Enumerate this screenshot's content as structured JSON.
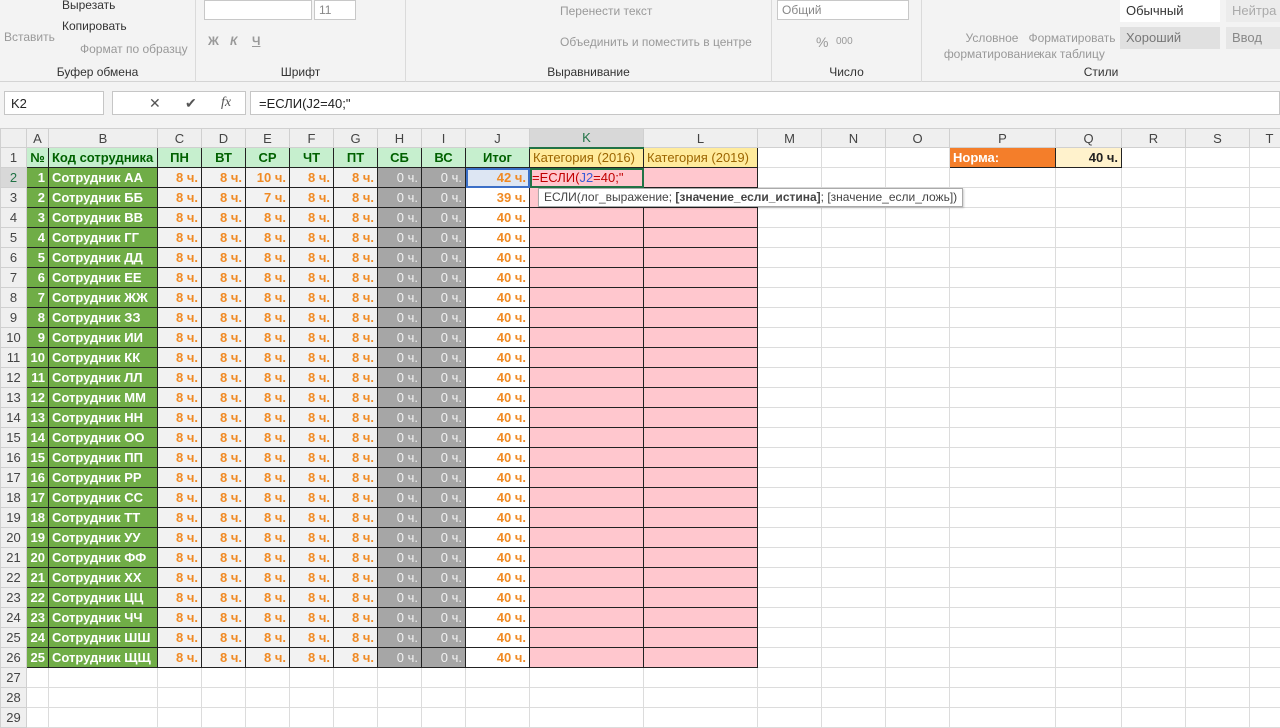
{
  "ribbon": {
    "clipboard": {
      "label": "Буфер обмена",
      "paste": "Вставить",
      "cut": "Вырезать",
      "copy": "Копировать",
      "format_painter": "Формат по образцу"
    },
    "font": {
      "label": "Шрифт",
      "font_name": "",
      "font_size": "11",
      "bold": "Ж",
      "italic": "К",
      "underline": "Ч"
    },
    "alignment": {
      "label": "Выравнивание",
      "wrap_text": "Перенести текст",
      "merge_center": "Объединить и поместить в центре"
    },
    "number": {
      "label": "Число",
      "format": "Общий",
      "percent": "%",
      "thousands": "000"
    },
    "styles": {
      "label": "Стили",
      "conditional": "Условное форматирование",
      "format_table": "Форматировать как таблицу",
      "normal": "Обычный",
      "neutral": "Нейтра",
      "good": "Хороший",
      "input": "Ввод"
    }
  },
  "formula_bar": {
    "name_box": "K2",
    "cancel": "✕",
    "enter": "✔",
    "fx": "fx",
    "formula": "=ЕСЛИ(J2=40;\""
  },
  "columns": [
    "A",
    "B",
    "C",
    "D",
    "E",
    "F",
    "G",
    "H",
    "I",
    "J",
    "K",
    "L",
    "M",
    "N",
    "O",
    "P",
    "Q",
    "R",
    "S",
    "T"
  ],
  "headers": [
    "№",
    "Код сотрудника",
    "ПН",
    "ВТ",
    "СР",
    "ЧТ",
    "ПТ",
    "СБ",
    "ВС",
    "Итог",
    "Категория (2016)",
    "Категория (2019)"
  ],
  "norm": {
    "label": "Норма:",
    "value": "40 ч."
  },
  "edit": {
    "prefix": "=ЕСЛИ(",
    "ref": "J2",
    "suffix": "=40;\""
  },
  "tooltip": {
    "fn": "ЕСЛИ(",
    "arg1": "лог_выражение; ",
    "arg2": "[значение_если_истина]",
    "arg3": "; [значение_если_ложь])"
  },
  "employees": [
    {
      "n": "1",
      "name": "Сотрудник АА",
      "days": [
        "8 ч.",
        "8 ч.",
        "10 ч.",
        "8 ч.",
        "8 ч.",
        "0 ч.",
        "0 ч."
      ],
      "total": "42 ч."
    },
    {
      "n": "2",
      "name": "Сотрудник ББ",
      "days": [
        "8 ч.",
        "8 ч.",
        "7 ч.",
        "8 ч.",
        "8 ч.",
        "0 ч.",
        "0 ч."
      ],
      "total": "39 ч."
    },
    {
      "n": "3",
      "name": "Сотрудник ВВ",
      "days": [
        "8 ч.",
        "8 ч.",
        "8 ч.",
        "8 ч.",
        "8 ч.",
        "0 ч.",
        "0 ч."
      ],
      "total": "40 ч."
    },
    {
      "n": "4",
      "name": "Сотрудник ГГ",
      "days": [
        "8 ч.",
        "8 ч.",
        "8 ч.",
        "8 ч.",
        "8 ч.",
        "0 ч.",
        "0 ч."
      ],
      "total": "40 ч."
    },
    {
      "n": "5",
      "name": "Сотрудник ДД",
      "days": [
        "8 ч.",
        "8 ч.",
        "8 ч.",
        "8 ч.",
        "8 ч.",
        "0 ч.",
        "0 ч."
      ],
      "total": "40 ч."
    },
    {
      "n": "6",
      "name": "Сотрудник ЕЕ",
      "days": [
        "8 ч.",
        "8 ч.",
        "8 ч.",
        "8 ч.",
        "8 ч.",
        "0 ч.",
        "0 ч."
      ],
      "total": "40 ч."
    },
    {
      "n": "7",
      "name": "Сотрудник ЖЖ",
      "days": [
        "8 ч.",
        "8 ч.",
        "8 ч.",
        "8 ч.",
        "8 ч.",
        "0 ч.",
        "0 ч."
      ],
      "total": "40 ч."
    },
    {
      "n": "8",
      "name": "Сотрудник ЗЗ",
      "days": [
        "8 ч.",
        "8 ч.",
        "8 ч.",
        "8 ч.",
        "8 ч.",
        "0 ч.",
        "0 ч."
      ],
      "total": "40 ч."
    },
    {
      "n": "9",
      "name": "Сотрудник ИИ",
      "days": [
        "8 ч.",
        "8 ч.",
        "8 ч.",
        "8 ч.",
        "8 ч.",
        "0 ч.",
        "0 ч."
      ],
      "total": "40 ч."
    },
    {
      "n": "10",
      "name": "Сотрудник КК",
      "days": [
        "8 ч.",
        "8 ч.",
        "8 ч.",
        "8 ч.",
        "8 ч.",
        "0 ч.",
        "0 ч."
      ],
      "total": "40 ч."
    },
    {
      "n": "11",
      "name": "Сотрудник ЛЛ",
      "days": [
        "8 ч.",
        "8 ч.",
        "8 ч.",
        "8 ч.",
        "8 ч.",
        "0 ч.",
        "0 ч."
      ],
      "total": "40 ч."
    },
    {
      "n": "12",
      "name": "Сотрудник ММ",
      "days": [
        "8 ч.",
        "8 ч.",
        "8 ч.",
        "8 ч.",
        "8 ч.",
        "0 ч.",
        "0 ч."
      ],
      "total": "40 ч."
    },
    {
      "n": "13",
      "name": "Сотрудник НН",
      "days": [
        "8 ч.",
        "8 ч.",
        "8 ч.",
        "8 ч.",
        "8 ч.",
        "0 ч.",
        "0 ч."
      ],
      "total": "40 ч."
    },
    {
      "n": "14",
      "name": "Сотрудник ОО",
      "days": [
        "8 ч.",
        "8 ч.",
        "8 ч.",
        "8 ч.",
        "8 ч.",
        "0 ч.",
        "0 ч."
      ],
      "total": "40 ч."
    },
    {
      "n": "15",
      "name": "Сотрудник ПП",
      "days": [
        "8 ч.",
        "8 ч.",
        "8 ч.",
        "8 ч.",
        "8 ч.",
        "0 ч.",
        "0 ч."
      ],
      "total": "40 ч."
    },
    {
      "n": "16",
      "name": "Сотрудник РР",
      "days": [
        "8 ч.",
        "8 ч.",
        "8 ч.",
        "8 ч.",
        "8 ч.",
        "0 ч.",
        "0 ч."
      ],
      "total": "40 ч."
    },
    {
      "n": "17",
      "name": "Сотрудник СС",
      "days": [
        "8 ч.",
        "8 ч.",
        "8 ч.",
        "8 ч.",
        "8 ч.",
        "0 ч.",
        "0 ч."
      ],
      "total": "40 ч."
    },
    {
      "n": "18",
      "name": "Сотрудник ТТ",
      "days": [
        "8 ч.",
        "8 ч.",
        "8 ч.",
        "8 ч.",
        "8 ч.",
        "0 ч.",
        "0 ч."
      ],
      "total": "40 ч."
    },
    {
      "n": "19",
      "name": "Сотрудник УУ",
      "days": [
        "8 ч.",
        "8 ч.",
        "8 ч.",
        "8 ч.",
        "8 ч.",
        "0 ч.",
        "0 ч."
      ],
      "total": "40 ч."
    },
    {
      "n": "20",
      "name": "Сотрудник ФФ",
      "days": [
        "8 ч.",
        "8 ч.",
        "8 ч.",
        "8 ч.",
        "8 ч.",
        "0 ч.",
        "0 ч."
      ],
      "total": "40 ч."
    },
    {
      "n": "21",
      "name": "Сотрудник ХХ",
      "days": [
        "8 ч.",
        "8 ч.",
        "8 ч.",
        "8 ч.",
        "8 ч.",
        "0 ч.",
        "0 ч."
      ],
      "total": "40 ч."
    },
    {
      "n": "22",
      "name": "Сотрудник ЦЦ",
      "days": [
        "8 ч.",
        "8 ч.",
        "8 ч.",
        "8 ч.",
        "8 ч.",
        "0 ч.",
        "0 ч."
      ],
      "total": "40 ч."
    },
    {
      "n": "23",
      "name": "Сотрудник ЧЧ",
      "days": [
        "8 ч.",
        "8 ч.",
        "8 ч.",
        "8 ч.",
        "8 ч.",
        "0 ч.",
        "0 ч."
      ],
      "total": "40 ч."
    },
    {
      "n": "24",
      "name": "Сотрудник ШШ",
      "days": [
        "8 ч.",
        "8 ч.",
        "8 ч.",
        "8 ч.",
        "8 ч.",
        "0 ч.",
        "0 ч."
      ],
      "total": "40 ч."
    },
    {
      "n": "25",
      "name": "Сотрудник ЩЩ",
      "days": [
        "8 ч.",
        "8 ч.",
        "8 ч.",
        "8 ч.",
        "8 ч.",
        "0 ч.",
        "0 ч."
      ],
      "total": "40 ч."
    }
  ],
  "empty_rows": [
    "27",
    "28",
    "29"
  ],
  "colors": {
    "accent": "#217346",
    "header_fill": "#c6efce",
    "name_fill": "#70ad47",
    "category_fill": "#ffeb9c",
    "pink_fill": "#ffc7ce",
    "norm_fill": "#f47e2a",
    "hours_text": "#f08a24"
  }
}
